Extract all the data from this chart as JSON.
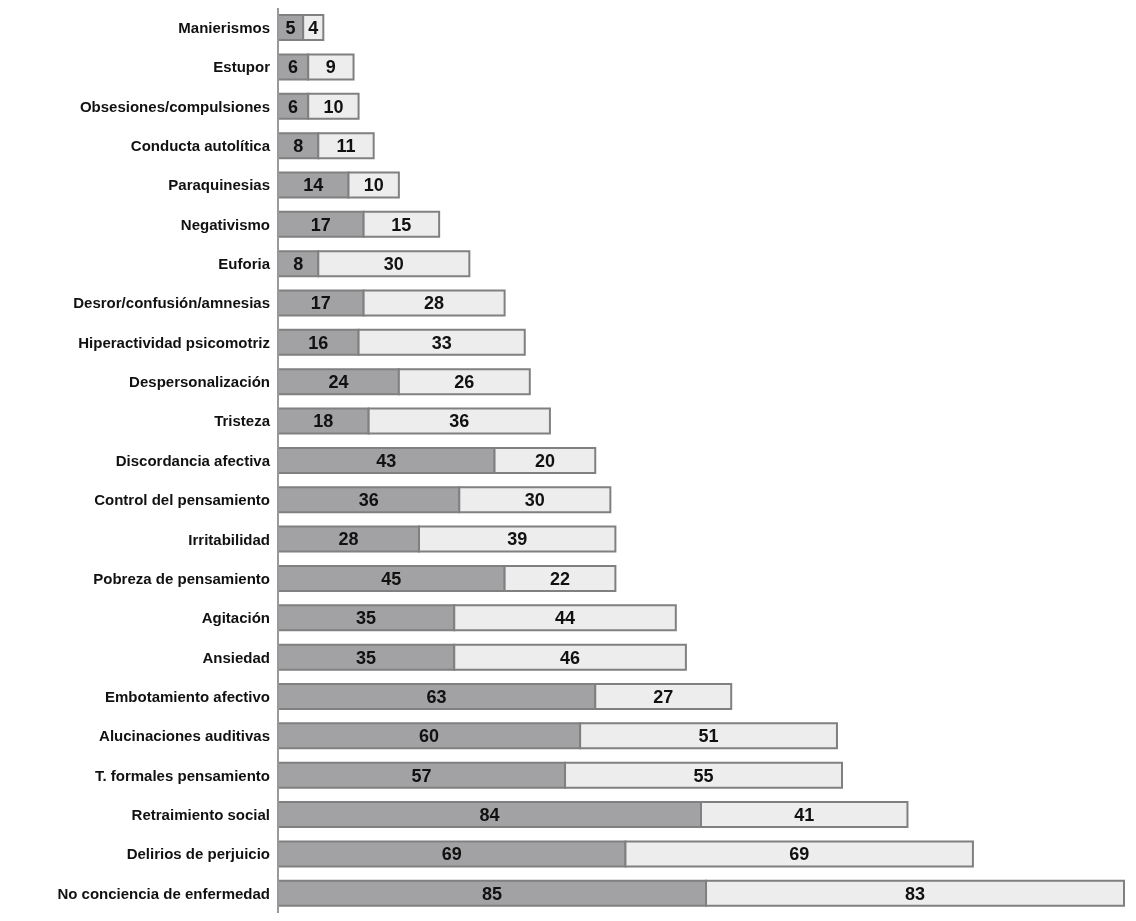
{
  "chart_data": {
    "type": "bar",
    "orientation": "horizontal",
    "stacked": true,
    "data_labels": true,
    "categories": [
      "Manierismos",
      "Estupor",
      "Obsesiones/compulsiones",
      "Conducta autolítica",
      "Paraquinesias",
      "Negativismo",
      "Euforia",
      "Desror/confusión/amnesias",
      "Hiperactividad psicomotriz",
      "Despersonalización",
      "Tristeza",
      "Discordancia afectiva",
      "Control del pensamiento",
      "Irritabilidad",
      "Pobreza de pensamiento",
      "Agitación",
      "Ansiedad",
      "Embotamiento afectivo",
      "Alucinaciones auditivas",
      "T. formales pensamiento",
      "Retraimiento social",
      "Delirios de perjuicio",
      "No conciencia de enfermedad"
    ],
    "series": [
      {
        "color": "#a2a2a4",
        "values": [
          5,
          6,
          6,
          8,
          14,
          17,
          8,
          17,
          16,
          24,
          18,
          43,
          36,
          28,
          45,
          35,
          35,
          63,
          60,
          57,
          84,
          69,
          85
        ]
      },
      {
        "color": "#ededed",
        "values": [
          4,
          9,
          10,
          11,
          10,
          15,
          30,
          28,
          33,
          26,
          36,
          20,
          30,
          39,
          22,
          44,
          46,
          27,
          51,
          55,
          41,
          69,
          83
        ]
      }
    ]
  }
}
